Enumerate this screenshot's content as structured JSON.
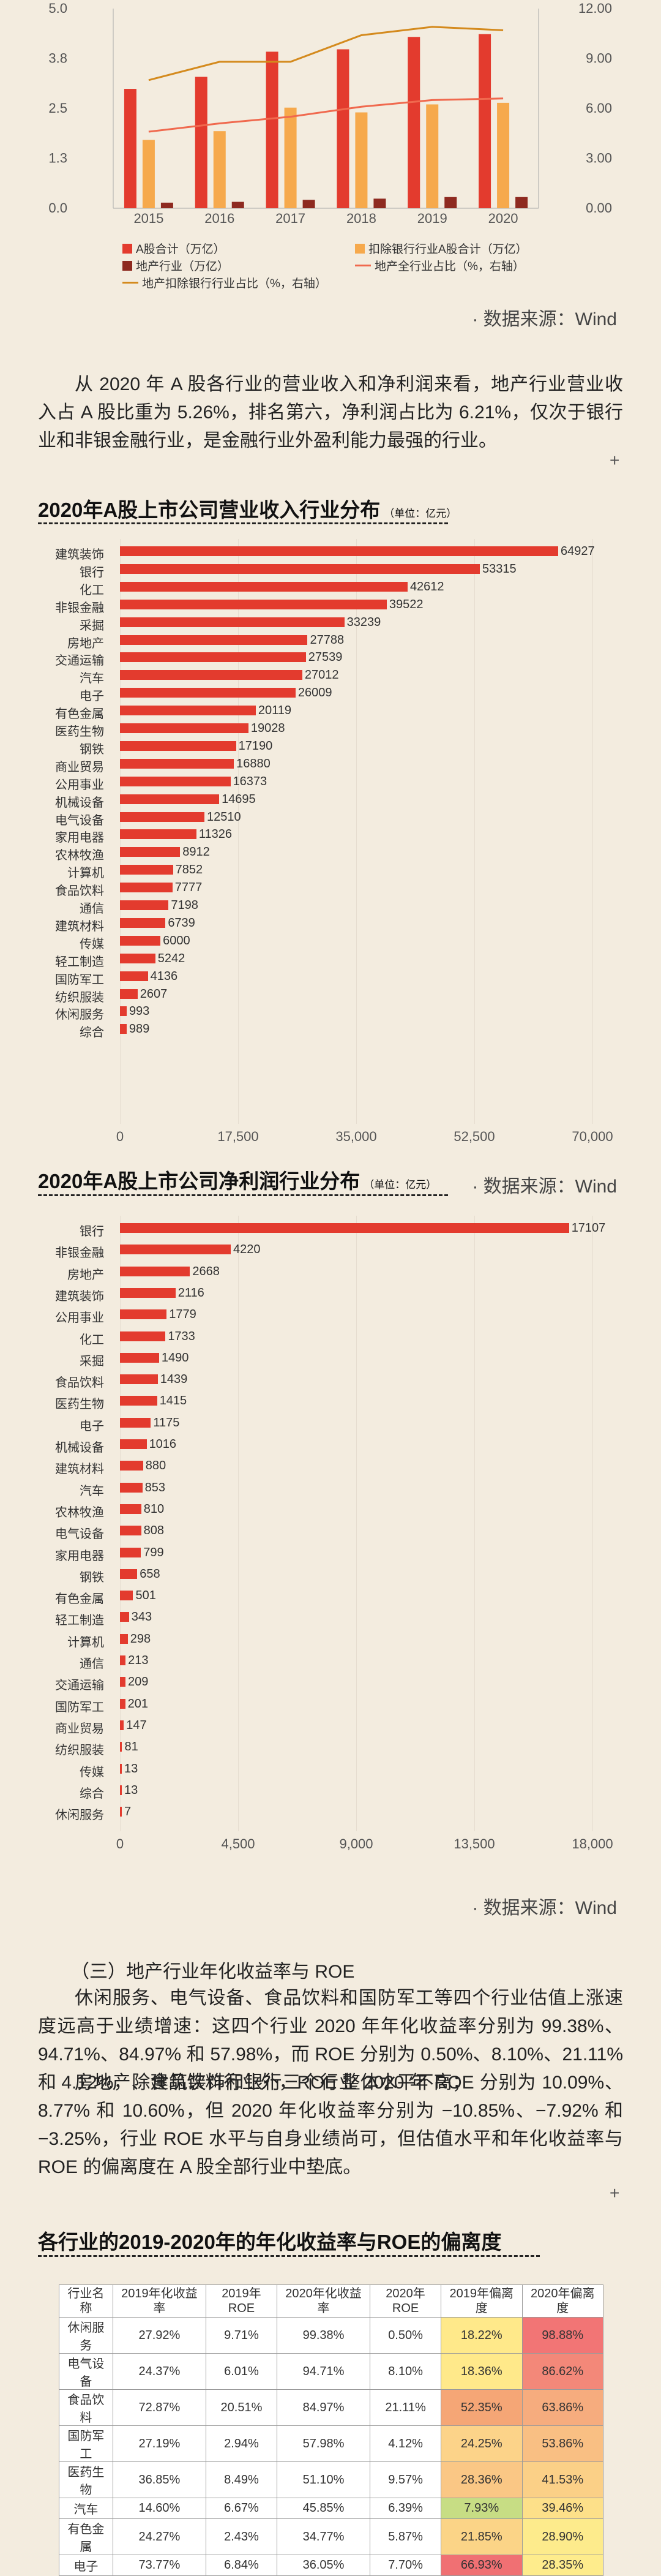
{
  "chart1": {
    "chart_data": {
      "type": "bar",
      "categories": [
        "2015",
        "2016",
        "2017",
        "2018",
        "2019",
        "2020"
      ],
      "series": [
        {
          "name": "A股合计（万亿）",
          "kind": "bar",
          "axis": "left",
          "color": "#e33b2e",
          "values": [
            2.99,
            3.29,
            3.92,
            3.98,
            4.29,
            4.36
          ]
        },
        {
          "name": "地产行业（万亿）",
          "kind": "bar",
          "axis": "left",
          "color": "#8e2a20",
          "values": [
            0.14,
            0.16,
            0.21,
            0.24,
            0.28,
            0.28
          ]
        },
        {
          "name": "扣除银行行业A股合计（万亿）",
          "kind": "bar",
          "axis": "left",
          "color": "#f6a94c",
          "values": [
            1.71,
            1.93,
            2.52,
            2.4,
            2.6,
            2.64
          ]
        },
        {
          "name": "地产全行业占比（%，右轴）",
          "kind": "line",
          "axis": "right",
          "color": "#f0694e",
          "values": [
            4.6,
            5.1,
            5.5,
            6.1,
            6.5,
            6.6
          ]
        },
        {
          "name": "地产扣除银行行业占比（%，右轴）",
          "kind": "line",
          "axis": "right",
          "color": "#d48a1d",
          "values": [
            7.7,
            8.8,
            8.8,
            10.4,
            10.9,
            10.7
          ]
        }
      ],
      "ylim": [
        0,
        5.0
      ],
      "y2lim": [
        0,
        12.0
      ],
      "yticks": [
        "0.0",
        "1.3",
        "2.5",
        "3.8",
        "5.0"
      ],
      "y2ticks": [
        "0.00",
        "3.00",
        "6.00",
        "9.00",
        "12.00"
      ]
    },
    "source": "· 数据来源：Wind"
  },
  "para1": "从 2020 年 A 股各行业的营业收入和净利润来看，地产行业营业收入占 A 股比重为 5.26%，排名第六，净利润占比为 6.21%，仅次于银行业和非银金融行业，是金融行业外盈利能力最强的行业。",
  "plus": "+",
  "chart2": {
    "title": "2020年A股上市公司营业收入行业分布",
    "unit": "（单位：亿元）",
    "chart_data": {
      "type": "bar",
      "orientation": "horizontal",
      "categories": [
        "建筑装饰",
        "银行",
        "化工",
        "非银金融",
        "采掘",
        "房地产",
        "交通运输",
        "汽车",
        "电子",
        "有色金属",
        "医药生物",
        "钢铁",
        "商业贸易",
        "公用事业",
        "机械设备",
        "电气设备",
        "家用电器",
        "农林牧渔",
        "计算机",
        "食品饮料",
        "通信",
        "建筑材料",
        "传媒",
        "轻工制造",
        "国防军工",
        "纺织服装",
        "休闲服务",
        "综合"
      ],
      "values": [
        64927,
        53315,
        42612,
        39522,
        33239,
        27788,
        27539,
        27012,
        26009,
        20119,
        19028,
        17190,
        16880,
        16373,
        14695,
        12510,
        11326,
        8912,
        7852,
        7777,
        7198,
        6739,
        6000,
        5242,
        4136,
        2607,
        993,
        989
      ],
      "xlim": [
        0,
        70000
      ],
      "xticks": [
        "0",
        "17,500",
        "35,000",
        "52,500",
        "70,000"
      ]
    },
    "source": "· 数据来源：Wind"
  },
  "chart3": {
    "title": "2020年A股上市公司净利润行业分布",
    "unit": "（单位：亿元）",
    "chart_data": {
      "type": "bar",
      "orientation": "horizontal",
      "categories": [
        "银行",
        "非银金融",
        "房地产",
        "建筑装饰",
        "公用事业",
        "化工",
        "采掘",
        "食品饮料",
        "医药生物",
        "电子",
        "机械设备",
        "建筑材料",
        "汽车",
        "农林牧渔",
        "电气设备",
        "家用电器",
        "钢铁",
        "有色金属",
        "轻工制造",
        "计算机",
        "通信",
        "交通运输",
        "国防军工",
        "商业贸易",
        "纺织服装",
        "传媒",
        "综合",
        "休闲服务"
      ],
      "values": [
        17107,
        4220,
        2668,
        2116,
        1779,
        1733,
        1490,
        1439,
        1415,
        1175,
        1016,
        880,
        853,
        810,
        808,
        799,
        658,
        501,
        343,
        298,
        213,
        209,
        201,
        147,
        81,
        13,
        13,
        7
      ],
      "xlim": [
        0,
        18000
      ],
      "xticks": [
        "0",
        "4,500",
        "9,000",
        "13,500",
        "18,000"
      ]
    },
    "source": "· 数据来源：Wind"
  },
  "section3": {
    "heading": "（三）地产行业年化收益率与 ROE",
    "p1": "休闲服务、电气设备、食品饮料和国防军工等四个行业估值上涨速度远高于业绩增速：这四个行业 2020 年年化收益率分别为 99.38%、94.71%、84.97% 和 57.98%，而 ROE 分别为 0.50%、8.10%、21.11% 和 4.12%，除食品饮料行业外，ROE 整体水平不高；",
    "p2": "房地产、建筑装饰和银行三个行业 2020 年 ROE 分别为 10.09%、8.77% 和 10.60%，但 2020 年化收益率分别为 −10.85%、−7.92% 和 −3.25%，行业 ROE 水平与自身业绩尚可，但估值水平和年化收益率与 ROE 的偏离度在 A 股全部行业中垫底。"
  },
  "table": {
    "title": "各行业的2019-2020年的年化收益率与ROE的偏离度",
    "headers": [
      "行业名称",
      "2019年化收益率",
      "2019年ROE",
      "2020年化收益率",
      "2020年ROE",
      "2019年偏离度",
      "2020年偏离度"
    ],
    "rows": [
      [
        "休闲服务",
        "27.92%",
        "9.71%",
        "99.38%",
        "0.50%",
        "18.22%",
        "98.88%"
      ],
      [
        "电气设备",
        "24.37%",
        "6.01%",
        "94.71%",
        "8.10%",
        "18.36%",
        "86.62%"
      ],
      [
        "食品饮料",
        "72.87%",
        "20.51%",
        "84.97%",
        "21.11%",
        "52.35%",
        "63.86%"
      ],
      [
        "国防军工",
        "27.19%",
        "2.94%",
        "57.98%",
        "4.12%",
        "24.25%",
        "53.86%"
      ],
      [
        "医药生物",
        "36.85%",
        "8.49%",
        "51.10%",
        "9.57%",
        "28.36%",
        "41.53%"
      ],
      [
        "汽车",
        "14.60%",
        "6.67%",
        "45.85%",
        "6.39%",
        "7.93%",
        "39.46%"
      ],
      [
        "有色金属",
        "24.27%",
        "2.43%",
        "34.77%",
        "5.87%",
        "21.85%",
        "28.90%"
      ],
      [
        "电子",
        "73.77%",
        "6.84%",
        "36.05%",
        "7.70%",
        "66.93%",
        "28.35%"
      ]
    ],
    "colors2019": [
      "#ffe98a",
      "#ffe98a",
      "#f5a676",
      "#fcd389",
      "#fac785",
      "#c7dd84",
      "#fbd487",
      "#f07073"
    ],
    "colors2020": [
      "#f27575",
      "#f38879",
      "#f6ac7e",
      "#f9bf83",
      "#fbd087",
      "#fde089",
      "#fdeb8c",
      "#feec8c"
    ]
  }
}
